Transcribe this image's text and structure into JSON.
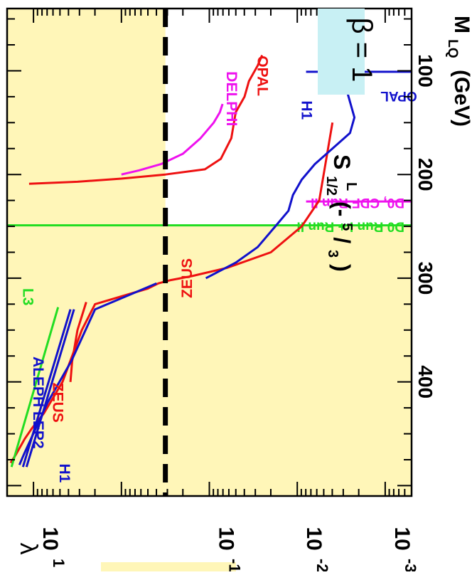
{
  "chart_data": {
    "type": "line",
    "orientation": "rotated-90-clockwise",
    "xlabel": "M",
    "xlabel_sub": "LQ",
    "xlabel_unit": "(GeV)",
    "ylabel": "λ",
    "xlim": [
      40,
      510
    ],
    "ylim_log10": [
      -3.3,
      1.3
    ],
    "x_ticks": [
      "100",
      "200",
      "300",
      "400"
    ],
    "x_tick_values": [
      100,
      200,
      300,
      400
    ],
    "y_tick_values": [
      1,
      -1,
      -2,
      -3
    ],
    "y_tick_base": "10",
    "y_tick_exps": [
      "1",
      "-1",
      "-2",
      "-3"
    ],
    "box_label": "β = 1",
    "state_label": {
      "main": "S",
      "sub": "1/2",
      "sup": "L",
      "charge_open": "(-",
      "charge_num": "5",
      "charge_den": "3",
      "charge_close": ")"
    },
    "shaded_color": "#fff6b8",
    "box_color": "#c8f0f4",
    "reference_lambda_log10": -0.5,
    "vertical_limits": [
      {
        "name": "D0 Run I + Run II",
        "x": 249,
        "color": "#22dd22",
        "label": "D0 Run I + Run II"
      },
      {
        "name": "D0, CDF Run II",
        "x": 226,
        "color": "#ee11ee",
        "label": "D0, CDF Run II"
      },
      {
        "name": "OPAL",
        "x": 101,
        "color": "#1111cc",
        "label": "OPAL"
      }
    ],
    "series": [
      {
        "name": "ZEUS",
        "color": "#ee1111",
        "points": [
          [
            150,
            -2.4
          ],
          [
            175,
            -2.35
          ],
          [
            200,
            -2.3
          ],
          [
            225,
            -2.25
          ],
          [
            250,
            -2.05
          ],
          [
            275,
            -1.7
          ],
          [
            290,
            -1.2
          ],
          [
            298,
            -0.8
          ],
          [
            302,
            -0.55
          ],
          [
            305,
            -0.42
          ],
          [
            310,
            -0.3
          ],
          [
            325,
            0.3
          ],
          [
            350,
            0.45
          ],
          [
            400,
            0.67
          ],
          [
            430,
            0.88
          ],
          [
            445,
            1.02
          ],
          [
            455,
            1.1
          ],
          [
            470,
            1.2
          ],
          [
            478,
            1.26
          ]
        ]
      },
      {
        "name": "ZEUS (upper)",
        "color": "#ee1111",
        "points": [
          [
            323,
            0.4
          ],
          [
            350,
            0.5
          ],
          [
            380,
            0.56
          ],
          [
            400,
            0.58
          ]
        ]
      },
      {
        "name": "H1",
        "color": "#1111cc",
        "points": [
          [
            80,
            -2.7
          ],
          [
            90,
            -2.62
          ],
          [
            100,
            -2.56
          ],
          [
            115,
            -2.55
          ],
          [
            130,
            -2.6
          ],
          [
            145,
            -2.65
          ],
          [
            160,
            -2.6
          ],
          [
            175,
            -2.4
          ],
          [
            190,
            -2.2
          ],
          [
            205,
            -2.05
          ],
          [
            220,
            -1.95
          ],
          [
            235,
            -1.9
          ],
          [
            250,
            -1.75
          ],
          [
            270,
            -1.55
          ],
          [
            285,
            -1.3
          ],
          [
            300,
            -0.96
          ]
        ]
      },
      {
        "name": "H1 (high-mass)",
        "color": "#1111cc",
        "points": [
          [
            305,
            -0.4
          ],
          [
            330,
            0.3
          ],
          [
            380,
            0.57
          ],
          [
            420,
            0.84
          ],
          [
            470,
            1.11
          ],
          [
            480,
            1.16
          ]
        ]
      },
      {
        "name": "OPAL",
        "color": "#ee1111",
        "points": [
          [
            85,
            -1.6
          ],
          [
            95,
            -1.55
          ],
          [
            110,
            -1.45
          ],
          [
            125,
            -1.4
          ],
          [
            140,
            -1.3
          ],
          [
            165,
            -1.25
          ],
          [
            185,
            -1.13
          ],
          [
            195,
            -0.95
          ],
          [
            200,
            -0.5
          ],
          [
            204,
            0.0
          ],
          [
            207,
            0.5
          ],
          [
            209,
            1.05
          ]
        ]
      },
      {
        "name": "DELPHI",
        "color": "#ee11ee",
        "points": [
          [
            132,
            -1.15
          ],
          [
            140,
            -1.12
          ],
          [
            150,
            -1.05
          ],
          [
            165,
            -0.9
          ],
          [
            180,
            -0.7
          ],
          [
            190,
            -0.45
          ],
          [
            196,
            -0.2
          ],
          [
            200,
            0.0
          ]
        ]
      },
      {
        "name": "ALEPH",
        "color": "#1111cc",
        "points": [
          [
            330,
            0.58
          ],
          [
            482,
            1.12
          ]
        ]
      },
      {
        "name": "LEP2",
        "color": "#1111cc",
        "points": [
          [
            330,
            0.58
          ],
          [
            482,
            1.12
          ]
        ]
      },
      {
        "name": "L3",
        "color": "#22dd22",
        "points": [
          [
            328,
            0.72
          ],
          [
            482,
            1.25
          ]
        ]
      }
    ],
    "annotations": [
      {
        "text": "ZEUS",
        "color": "#ee1111",
        "x": 420,
        "ly": 0.78,
        "rot": 180
      },
      {
        "text": "ZEUS",
        "color": "#ee1111",
        "x": 300,
        "ly": -0.8,
        "rot": 0
      },
      {
        "text": "H1",
        "color": "#1111cc",
        "x": 138,
        "ly": -2.05,
        "rot": 180
      },
      {
        "text": "H1",
        "color": "#1111cc",
        "x": 488,
        "ly": 0.7,
        "rot": 180
      },
      {
        "text": "OPAL",
        "color": "#ee1111",
        "x": 105,
        "ly": -1.55,
        "rot": 180
      },
      {
        "text": "DELPHI",
        "color": "#ee11ee",
        "x": 127,
        "ly": -1.2,
        "rot": 180
      },
      {
        "text": "ALEPH LEP2",
        "color": "#1111cc",
        "x": 420,
        "ly": 1.0,
        "rot": 180
      },
      {
        "text": "L3",
        "color": "#22dd22",
        "x": 318,
        "ly": 1.12,
        "rot": 180
      }
    ]
  }
}
